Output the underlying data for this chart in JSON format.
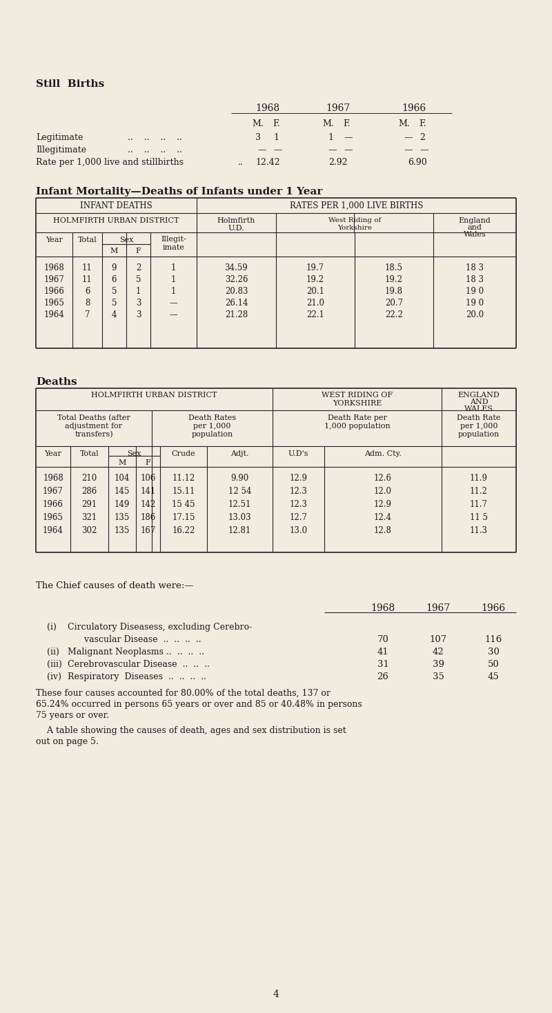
{
  "bg_color": "#f0ece0",
  "text_color": "#1a1a1a",
  "page_number": "4",
  "still_births_title": "Still  Births",
  "infant_title": "Infant Mortality—Deaths of Infants under 1 Year",
  "infant_data": [
    [
      "1968",
      "11",
      "9",
      "2",
      "1",
      "34.59",
      "19.7",
      "18.5",
      "18 3"
    ],
    [
      "1967",
      "11",
      "6",
      "5",
      "1",
      "32.26",
      "19.2",
      "19.2",
      "18 3"
    ],
    [
      "1966",
      "6",
      "5",
      "1",
      "1",
      "20.83",
      "20.1",
      "19.8",
      "19 0"
    ],
    [
      "1965",
      "8",
      "5",
      "3",
      "—",
      "26.14",
      "21.0",
      "20.7",
      "19 0"
    ],
    [
      "1964",
      "7",
      "4",
      "3",
      "—",
      "21.28",
      "22.1",
      "22.2",
      "20.0"
    ]
  ],
  "deaths_title": "Deaths",
  "deaths_data": [
    [
      "1968",
      "210",
      "104",
      "106",
      "11.12",
      "9.90",
      "12.9",
      "12.6",
      "11.9"
    ],
    [
      "1967",
      "286",
      "145",
      "141",
      "15.11",
      "12 54",
      "12.3",
      "12.0",
      "11.2"
    ],
    [
      "1966",
      "291",
      "149",
      "142",
      "15 45",
      "12.51",
      "12.3",
      "12.9",
      "11.7"
    ],
    [
      "1965",
      "321",
      "135",
      "186",
      "17.15",
      "13.03",
      "12.7",
      "12.4",
      "11 5"
    ],
    [
      "1964",
      "302",
      "135",
      "167",
      "16.22",
      "12.81",
      "13.0",
      "12.8",
      "11.3"
    ]
  ],
  "chief_causes_intro": "The Chief causes of death were:—",
  "cause_values": [
    [
      "70",
      "107",
      "116"
    ],
    [
      "41",
      "42",
      "30"
    ],
    [
      "31",
      "39",
      "50"
    ],
    [
      "26",
      "35",
      "45"
    ]
  ],
  "summary_line1": "These four causes accounted for 80.00% of the total deaths, 137 or",
  "summary_line2": "65.24% occurred in persons 65 years or over and 85 or 40.48% in persons",
  "summary_line3": "75 years or over.",
  "note_line1": "    A table showing the causes of death, ages and sex distribution is set",
  "note_line2": "out on page 5."
}
